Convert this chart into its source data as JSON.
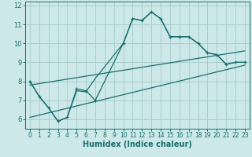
{
  "xlabel": "Humidex (Indice chaleur)",
  "bg_color": "#cce8e8",
  "grid_color": "#aacece",
  "line_color": "#1a6e6e",
  "xlim": [
    -0.5,
    23.5
  ],
  "ylim": [
    5.5,
    12.2
  ],
  "yticks": [
    6,
    7,
    8,
    9,
    10,
    11,
    12
  ],
  "xticks": [
    0,
    1,
    2,
    3,
    4,
    5,
    6,
    7,
    8,
    9,
    10,
    11,
    12,
    13,
    14,
    15,
    16,
    17,
    18,
    19,
    20,
    21,
    22,
    23
  ],
  "series_main": {
    "x": [
      0,
      1,
      2,
      3,
      4,
      5,
      6,
      7,
      10,
      11,
      12,
      13,
      14,
      15,
      16,
      17,
      18,
      19,
      20,
      21,
      22,
      23
    ],
    "y": [
      8.0,
      7.2,
      6.6,
      5.9,
      6.1,
      7.6,
      7.5,
      7.0,
      10.0,
      11.3,
      11.2,
      11.65,
      11.3,
      10.35,
      10.35,
      10.35,
      10.0,
      9.5,
      9.4,
      8.9,
      9.0,
      9.0
    ]
  },
  "series_smooth": {
    "x": [
      0,
      1,
      2,
      3,
      4,
      5,
      6,
      7,
      10,
      11,
      12,
      13,
      14,
      15,
      16,
      17,
      18,
      19,
      20,
      21,
      22,
      23
    ],
    "y": [
      8.0,
      7.2,
      6.6,
      5.9,
      6.1,
      7.5,
      7.45,
      8.15,
      10.0,
      11.3,
      11.2,
      11.65,
      11.3,
      10.35,
      10.35,
      10.35,
      10.0,
      9.5,
      9.4,
      8.9,
      9.0,
      9.0
    ]
  },
  "line_upper": {
    "x": [
      0,
      23
    ],
    "y": [
      7.8,
      9.6
    ]
  },
  "line_lower": {
    "x": [
      0,
      23
    ],
    "y": [
      6.1,
      8.85
    ]
  }
}
